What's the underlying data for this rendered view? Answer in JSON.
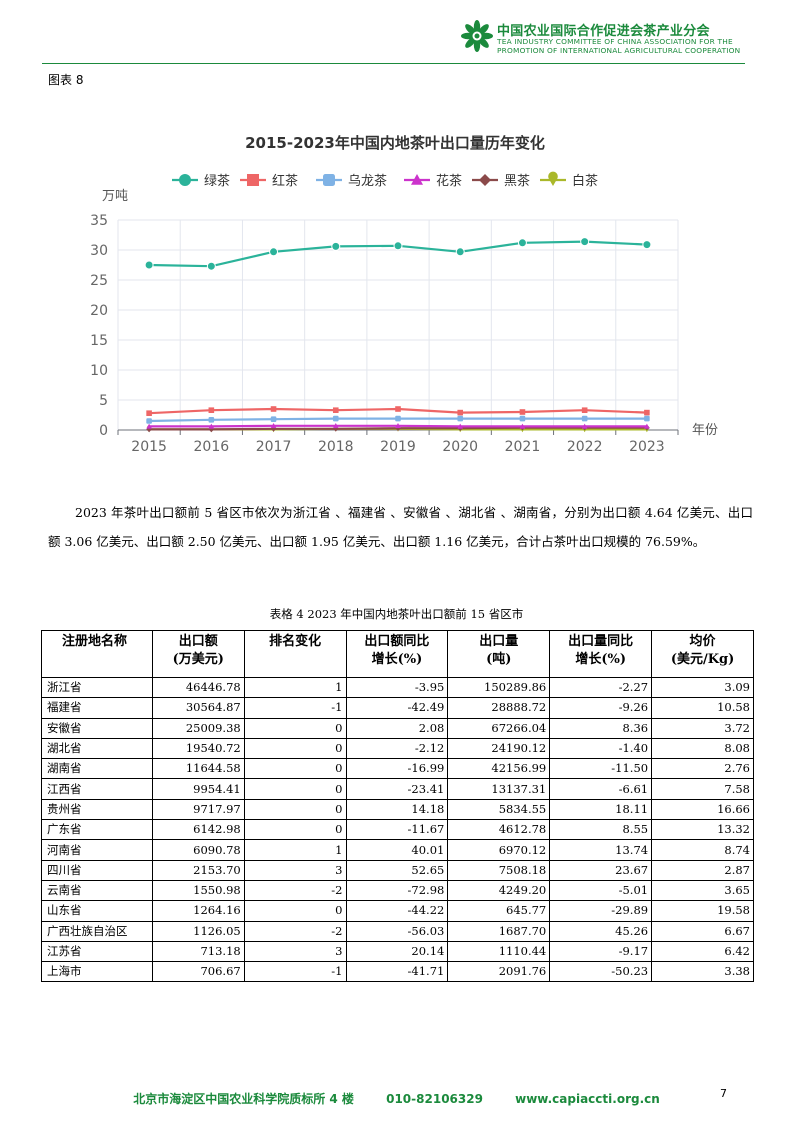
{
  "header": {
    "org_cn": "中国农业国际合作促进会茶产业分会",
    "org_en_1": "TEA INDUSTRY COMMITTEE OF CHINA ASSOCIATION FOR THE",
    "org_en_2": "PROMOTION OF INTERNATIONAL AGRICULTURAL COOPERATION"
  },
  "figure_label": "图表 8",
  "chart_data": {
    "type": "line",
    "title": "2015-2023年中国内地茶叶出口量历年变化",
    "ylabel": "万吨",
    "xlabel": "年份",
    "ylim": [
      0,
      35
    ],
    "yticks": [
      "0",
      "5",
      "10",
      "15",
      "20",
      "25",
      "30",
      "35"
    ],
    "categories": [
      "2015",
      "2016",
      "2017",
      "2018",
      "2019",
      "2020",
      "2021",
      "2022",
      "2023"
    ],
    "legend_position": "top",
    "grid": true,
    "series": [
      {
        "name": "绿茶",
        "color": "#2bb39a",
        "marker": "circle",
        "values": [
          27.5,
          27.3,
          29.7,
          30.6,
          30.7,
          29.7,
          31.2,
          31.4,
          30.9
        ]
      },
      {
        "name": "红茶",
        "color": "#ee6666",
        "marker": "square",
        "values": [
          2.8,
          3.3,
          3.5,
          3.3,
          3.5,
          2.9,
          3.0,
          3.3,
          2.9
        ]
      },
      {
        "name": "乌龙茶",
        "color": "#7fb2e5",
        "marker": "rounded-square",
        "values": [
          1.5,
          1.7,
          1.8,
          1.9,
          1.9,
          1.9,
          1.9,
          1.9,
          1.9
        ]
      },
      {
        "name": "花茶",
        "color": "#cc33cc",
        "marker": "triangle",
        "values": [
          0.6,
          0.6,
          0.7,
          0.7,
          0.7,
          0.6,
          0.6,
          0.6,
          0.6
        ]
      },
      {
        "name": "黑茶",
        "color": "#8b4a4a",
        "marker": "diamond",
        "values": [
          0.1,
          0.1,
          0.2,
          0.2,
          0.3,
          0.3,
          0.4,
          0.4,
          0.4
        ]
      },
      {
        "name": "白茶",
        "color": "#aab82a",
        "marker": "pin",
        "values": [
          0.1,
          0.1,
          0.1,
          0.2,
          0.2,
          0.1,
          0.1,
          0.1,
          0.1
        ]
      }
    ]
  },
  "paragraph": "2023 年茶叶出口额前 5 省区市依次为浙江省 、福建省 、安徽省 、湖北省 、湖南省，分别为出口额 4.64 亿美元、出口额 3.06 亿美元、出口额 2.50 亿美元、出口额 1.95 亿美元、出口额 1.16 亿美元，合计占茶叶出口规模的 76.59%。",
  "table": {
    "caption": "表格 4 2023 年中国内地茶叶出口额前 15 省区市",
    "headers": [
      {
        "l1": "注册地名称",
        "l2": ""
      },
      {
        "l1": "出口额",
        "l2": "(万美元)"
      },
      {
        "l1": "排名变化",
        "l2": ""
      },
      {
        "l1": "出口额同比",
        "l2": "增长(%)"
      },
      {
        "l1": "出口量",
        "l2": "(吨)"
      },
      {
        "l1": "出口量同比",
        "l2": "增长(%)"
      },
      {
        "l1": "均价",
        "l2": "(美元/Kg)"
      }
    ],
    "rows": [
      [
        "浙江省",
        "46446.78",
        "1",
        "-3.95",
        "150289.86",
        "-2.27",
        "3.09"
      ],
      [
        "福建省",
        "30564.87",
        "-1",
        "-42.49",
        "28888.72",
        "-9.26",
        "10.58"
      ],
      [
        "安徽省",
        "25009.38",
        "0",
        "2.08",
        "67266.04",
        "8.36",
        "3.72"
      ],
      [
        "湖北省",
        "19540.72",
        "0",
        "-2.12",
        "24190.12",
        "-1.40",
        "8.08"
      ],
      [
        "湖南省",
        "11644.58",
        "0",
        "-16.99",
        "42156.99",
        "-11.50",
        "2.76"
      ],
      [
        "江西省",
        "9954.41",
        "0",
        "-23.41",
        "13137.31",
        "-6.61",
        "7.58"
      ],
      [
        "贵州省",
        "9717.97",
        "0",
        "14.18",
        "5834.55",
        "18.11",
        "16.66"
      ],
      [
        "广东省",
        "6142.98",
        "0",
        "-11.67",
        "4612.78",
        "8.55",
        "13.32"
      ],
      [
        "河南省",
        "6090.78",
        "1",
        "40.01",
        "6970.12",
        "13.74",
        "8.74"
      ],
      [
        "四川省",
        "2153.70",
        "3",
        "52.65",
        "7508.18",
        "23.67",
        "2.87"
      ],
      [
        "云南省",
        "1550.98",
        "-2",
        "-72.98",
        "4249.20",
        "-5.01",
        "3.65"
      ],
      [
        "山东省",
        "1264.16",
        "0",
        "-44.22",
        "645.77",
        "-29.89",
        "19.58"
      ],
      [
        "广西壮族自治区",
        "1126.05",
        "-2",
        "-56.03",
        "1687.70",
        "45.26",
        "6.67"
      ],
      [
        "江苏省",
        "713.18",
        "3",
        "20.14",
        "1110.44",
        "-9.17",
        "6.42"
      ],
      [
        "上海市",
        "706.67",
        "-1",
        "-41.71",
        "2091.76",
        "-50.23",
        "3.38"
      ]
    ]
  },
  "footer": {
    "address": "北京市海淀区中国农业科学院质标所 4 楼",
    "phone": "010-82106329",
    "website": "www.capiaccti.org.cn"
  },
  "page_number": "7",
  "colors": {
    "brand_green": "#1b8a3c"
  }
}
